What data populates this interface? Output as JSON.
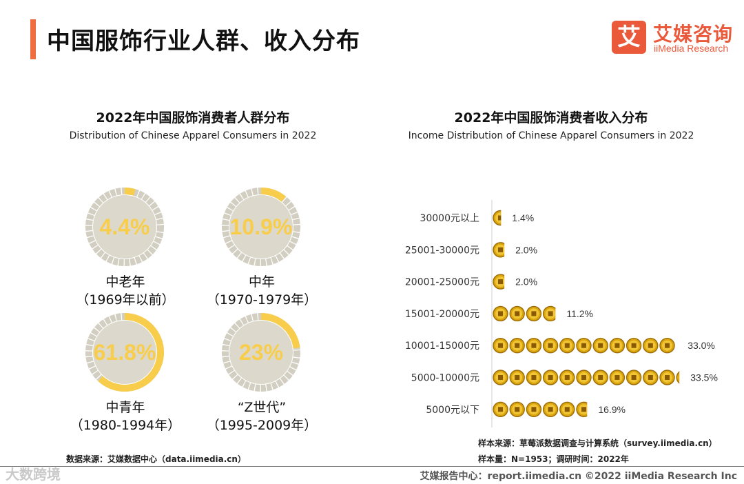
{
  "page": {
    "title": "中国服饰行业人群、收入分布"
  },
  "logo": {
    "mark": "艾",
    "name_cn": "艾媒咨询",
    "name_en": "iiMedia Research"
  },
  "colors": {
    "accent": "#ef6d3f",
    "donut_fill": "#f7cd4b",
    "donut_track": "#d2cfc2",
    "coin": "#d9a50f"
  },
  "left_chart": {
    "title": "2022年中国服饰消费者人群分布",
    "subtitle": "Distribution of Chinese Apparel Consumers in 2022",
    "items": [
      {
        "value_label": "4.4%",
        "value": 4.4,
        "line1": "中老年",
        "line2": "（1969年以前）"
      },
      {
        "value_label": "10.9%",
        "value": 10.9,
        "line1": "中年",
        "line2": "（1970-1979年）"
      },
      {
        "value_label": "61.8%",
        "value": 61.8,
        "line1": "中青年",
        "line2": "（1980-1994年）"
      },
      {
        "value_label": "23%",
        "value": 23,
        "line1": "“Z世代”",
        "line2": "（1995-2009年）"
      }
    ],
    "source": "数据来源：艾媒数据中心（data.iimedia.cn）"
  },
  "right_chart": {
    "title": "2022年中国服饰消费者收入分布",
    "subtitle": "Income Distribution of Chinese Apparel Consumers in 2022",
    "source_line1": "样本来源：草莓派数据调查与计算系统（survey.iimedia.cn）",
    "source_line2": "样本量：N=1953；调研时间：2022年"
  },
  "chart_data": [
    {
      "type": "pie",
      "title": "2022年中国服饰消费者人群分布",
      "categories": [
        "中老年（1969年以前）",
        "中年（1970-1979年）",
        "中青年（1980-1994年）",
        "“Z世代”（1995-2009年）"
      ],
      "values": [
        4.4,
        10.9,
        61.8,
        23
      ]
    },
    {
      "type": "bar",
      "title": "2022年中国服饰消费者收入分布",
      "categories": [
        "30000元以上",
        "25001-30000元",
        "20001-25000元",
        "15001-20000元",
        "10001-15000元",
        "5000-10000元",
        "5000元以下"
      ],
      "values": [
        1.4,
        2.0,
        2.0,
        11.2,
        33.0,
        33.5,
        16.9
      ],
      "value_labels": [
        "1.4%",
        "2.0%",
        "2.0%",
        "11.2%",
        "33.0%",
        "33.5%",
        "16.9%"
      ]
    }
  ],
  "footer": {
    "left": "大数跨境",
    "right": "艾媒报告中心：report.iimedia.cn  ©2022  iiMedia Research  Inc"
  }
}
